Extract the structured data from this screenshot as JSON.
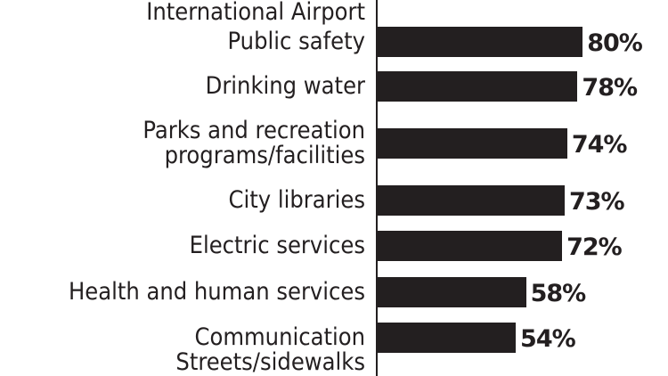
{
  "chart_data": {
    "type": "bar",
    "orientation": "horizontal",
    "categories": [
      "International Airport",
      "Public safety",
      "Drinking water",
      "Parks and recreation programs/facilities",
      "City libraries",
      "Electric services",
      "Health and human services",
      "Communication",
      "Streets/sidewalks"
    ],
    "category_lines": [
      [
        "International Airport"
      ],
      [
        "Public safety"
      ],
      [
        "Drinking water"
      ],
      [
        "Parks and recreation",
        "programs/facilities"
      ],
      [
        "City libraries"
      ],
      [
        "Electric services"
      ],
      [
        "Health and human services"
      ],
      [
        "Communication"
      ],
      [
        "Streets/sidewalks"
      ]
    ],
    "values": [
      null,
      80,
      78,
      74,
      73,
      72,
      58,
      54,
      null
    ],
    "labels": [
      "",
      "80%",
      "78%",
      "74%",
      "73%",
      "72%",
      "58%",
      "54%",
      ""
    ],
    "bar_color": "#231f20",
    "xlim": [
      0,
      100
    ],
    "grid": false,
    "note": "top and bottom rows cropped"
  }
}
